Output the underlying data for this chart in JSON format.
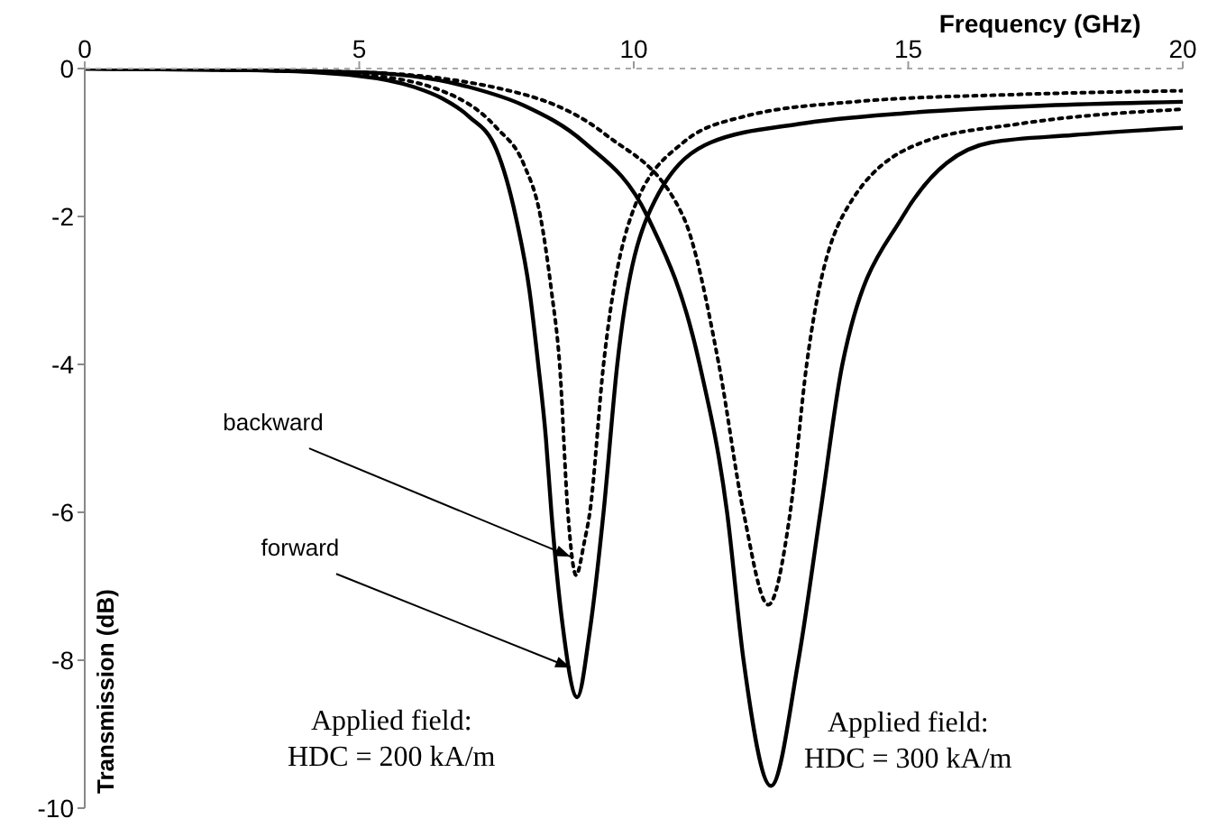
{
  "chart_data": {
    "type": "line",
    "xlabel": "Frequency (GHz)",
    "ylabel": "Transmission (dB)",
    "xlim": [
      0,
      20
    ],
    "xticks": [
      0,
      5,
      10,
      15,
      20
    ],
    "ylim": [
      -10,
      0
    ],
    "yticks": [
      0,
      -2,
      -4,
      -6,
      -8,
      -10
    ],
    "marker": "none",
    "series": [
      {
        "color": "#000000",
        "line_style": "solid",
        "x": [
          0,
          3,
          5,
          6,
          6.5,
          7,
          7.5,
          7.85,
          8.1,
          8.26,
          8.4,
          8.5,
          8.7,
          8.97,
          9.2,
          9.45,
          9.7,
          10.25,
          11.4,
          13,
          15,
          17.5,
          20
        ],
        "values": [
          0,
          -0.02,
          -0.1,
          -0.25,
          -0.4,
          -0.65,
          -1.1,
          -2,
          -3,
          -4,
          -5,
          -6,
          -7.5,
          -8.5,
          -7.6,
          -6,
          -4,
          -2,
          -1,
          -0.75,
          -0.6,
          -0.5,
          -0.45
        ]
      },
      {
        "color": "#000000",
        "line_style": "dotted",
        "x": [
          0,
          3,
          5,
          6.5,
          7.5,
          8,
          8.3,
          8.5,
          8.65,
          8.8,
          8.95,
          9.1,
          9.2,
          9.45,
          9.95,
          10.9,
          12,
          14,
          17,
          20
        ],
        "values": [
          0,
          -0.02,
          -0.08,
          -0.3,
          -0.8,
          -1.3,
          -2,
          -3,
          -4,
          -6,
          -6.85,
          -6.4,
          -6,
          -4,
          -2,
          -1,
          -0.65,
          -0.45,
          -0.35,
          -0.3
        ]
      },
      {
        "color": "#000000",
        "line_style": "solid",
        "x": [
          0,
          5,
          7,
          8,
          9.1,
          10.25,
          11.2,
          11.7,
          12,
          12.5,
          13,
          13.4,
          13.8,
          14.9,
          16.5,
          18,
          20
        ],
        "values": [
          0,
          -0.05,
          -0.25,
          -0.5,
          -1,
          -2,
          -4,
          -6,
          -8,
          -9.7,
          -8,
          -6,
          -4,
          -2,
          -1,
          -0.9,
          -0.8
        ]
      },
      {
        "color": "#000000",
        "line_style": "dotted",
        "x": [
          0,
          5,
          8,
          9.5,
          10.9,
          11.55,
          12,
          12.45,
          12.85,
          13.15,
          13.8,
          15.25,
          17,
          20
        ],
        "values": [
          0,
          -0.05,
          -0.35,
          -0.9,
          -2,
          -4,
          -6,
          -7.25,
          -6,
          -4,
          -2,
          -1,
          -0.75,
          -0.55
        ]
      }
    ],
    "annotations": [
      {
        "text": "backward",
        "x": 8.85,
        "y": -6.6
      },
      {
        "text": "forward",
        "x": 8.85,
        "y": -8.1
      },
      {
        "text": "Applied field:\nHDC = 200 kA/m",
        "x": 8.97,
        "y": -8.5
      },
      {
        "text": "Applied field:\nHDC = 300 kA/m",
        "x": 12.5,
        "y": -9.7
      }
    ]
  }
}
